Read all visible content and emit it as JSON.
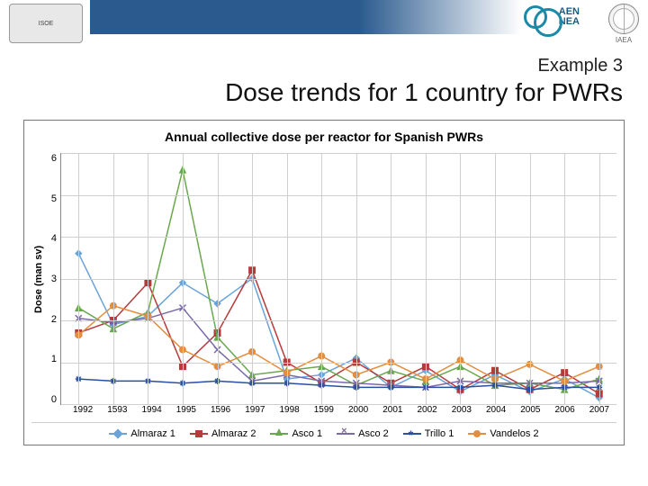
{
  "header": {
    "isoe_label": "ISOE",
    "nea_line1": "AEN",
    "nea_line2": "NEA",
    "iaea_label": "IAEA"
  },
  "titles": {
    "supertitle": "Example 3",
    "main": "Dose trends for 1 country for PWRs"
  },
  "chart": {
    "type": "line",
    "title": "Annual collective dose per reactor for Spanish PWRs",
    "ylabel": "Dose (man sv)",
    "ylim": [
      0,
      6
    ],
    "ytick_step": 1,
    "yticks": [
      "6",
      "5",
      "4",
      "3",
      "2",
      "1",
      "0"
    ],
    "categories": [
      "1992",
      "1593",
      "1994",
      "1995",
      "1596",
      "1997",
      "1998",
      "1599",
      "2000",
      "2001",
      "2002",
      "2003",
      "2004",
      "2005",
      "2006",
      "2007"
    ],
    "grid_color": "#cfcfcf",
    "axis_color": "#888888",
    "background_color": "#ffffff",
    "title_fontsize": 14,
    "label_fontsize": 11,
    "tick_fontsize": 10,
    "line_width": 1.5,
    "marker_size": 7,
    "series": [
      {
        "name": "Almaraz 1",
        "color": "#6aa3d8",
        "marker": "diamond",
        "values": [
          3.6,
          1.9,
          2.1,
          2.9,
          2.4,
          3.0,
          0.6,
          0.7,
          1.1,
          0.4,
          0.8,
          0.3,
          0.7,
          0.3,
          0.6,
          0.15
        ]
      },
      {
        "name": "Almaraz 2",
        "color": "#b63b3b",
        "marker": "square",
        "values": [
          1.7,
          2.0,
          2.9,
          0.9,
          1.7,
          3.2,
          1.0,
          0.5,
          1.0,
          0.5,
          0.9,
          0.35,
          0.8,
          0.35,
          0.75,
          0.25
        ]
      },
      {
        "name": "Asco 1",
        "color": "#6aa84f",
        "marker": "triangle",
        "values": [
          2.3,
          1.8,
          2.2,
          5.6,
          1.6,
          0.7,
          0.8,
          0.9,
          0.45,
          0.8,
          0.55,
          0.9,
          0.45,
          0.5,
          0.35,
          0.6
        ]
      },
      {
        "name": "Asco 2",
        "color": "#7a6aa8",
        "marker": "x",
        "values": [
          2.05,
          1.95,
          2.05,
          2.3,
          1.3,
          0.55,
          0.7,
          0.55,
          0.5,
          0.45,
          0.4,
          0.55,
          0.5,
          0.5,
          0.5,
          0.55
        ]
      },
      {
        "name": "Trillo 1",
        "color": "#2b4fa0",
        "marker": "star",
        "values": [
          0.6,
          0.55,
          0.55,
          0.5,
          0.55,
          0.5,
          0.5,
          0.45,
          0.4,
          0.4,
          0.4,
          0.4,
          0.45,
          0.35,
          0.4,
          0.4
        ]
      },
      {
        "name": "Vandelos 2",
        "color": "#e38e3e",
        "marker": "circle",
        "values": [
          1.65,
          2.35,
          2.1,
          1.3,
          0.9,
          1.25,
          0.75,
          1.15,
          0.7,
          1.0,
          0.6,
          1.05,
          0.6,
          0.95,
          0.55,
          0.9
        ]
      }
    ]
  }
}
